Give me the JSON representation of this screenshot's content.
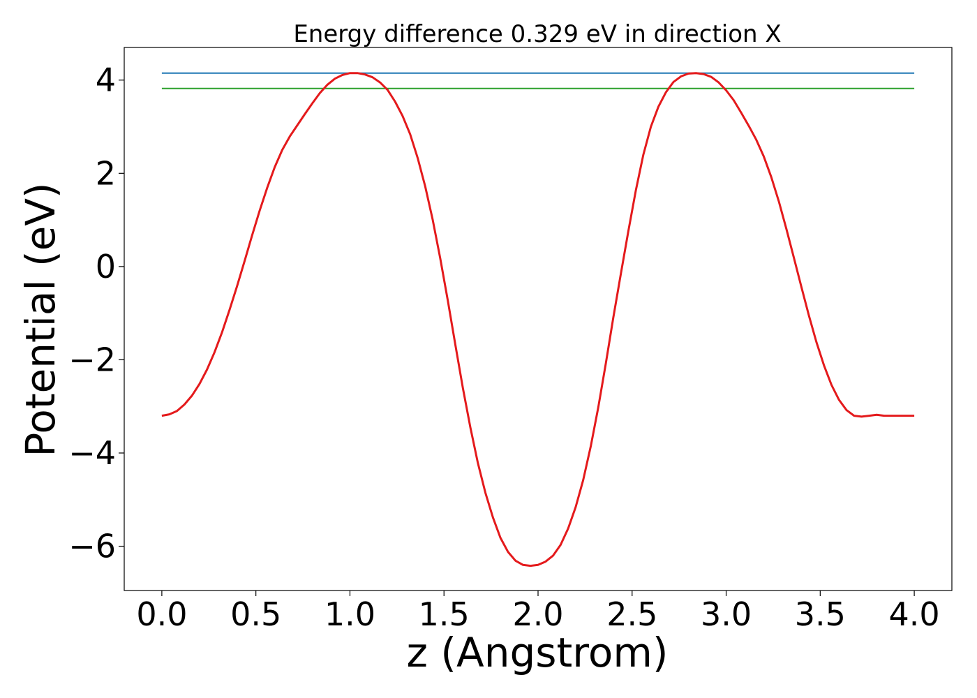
{
  "chart_data": {
    "type": "line",
    "title": "Energy difference 0.329 eV in direction X",
    "xlabel": "z (Angstrom)",
    "ylabel": "Potential (eV)",
    "xlim": [
      -0.2,
      4.2
    ],
    "ylim": [
      -6.95,
      4.7
    ],
    "xticks": [
      0.0,
      0.5,
      1.0,
      1.5,
      2.0,
      2.5,
      3.0,
      3.5,
      4.0
    ],
    "xtick_labels": [
      "0.0",
      "0.5",
      "1.0",
      "1.5",
      "2.0",
      "2.5",
      "3.0",
      "3.5",
      "4.0"
    ],
    "yticks": [
      -6,
      -4,
      -2,
      0,
      2,
      4
    ],
    "ytick_labels": [
      "−6",
      "−4",
      "−2",
      "0",
      "2",
      "4"
    ],
    "grid": false,
    "series": [
      {
        "color": "#1f77b4",
        "x": [
          0.0,
          4.0
        ],
        "y": [
          4.15,
          4.15
        ]
      },
      {
        "color": "#2ca02c",
        "x": [
          0.0,
          4.0
        ],
        "y": [
          3.82,
          3.82
        ]
      },
      {
        "color": "#e41a1c",
        "x": [
          0.0,
          0.04,
          0.08,
          0.12,
          0.16,
          0.2,
          0.24,
          0.28,
          0.32,
          0.36,
          0.4,
          0.44,
          0.48,
          0.52,
          0.56,
          0.6,
          0.64,
          0.68,
          0.72,
          0.76,
          0.8,
          0.84,
          0.88,
          0.92,
          0.96,
          1.0,
          1.04,
          1.08,
          1.12,
          1.16,
          1.2,
          1.24,
          1.28,
          1.32,
          1.36,
          1.4,
          1.44,
          1.48,
          1.52,
          1.56,
          1.6,
          1.64,
          1.68,
          1.72,
          1.76,
          1.8,
          1.84,
          1.88,
          1.92,
          1.96,
          2.0,
          2.04,
          2.08,
          2.12,
          2.16,
          2.2,
          2.24,
          2.28,
          2.32,
          2.36,
          2.4,
          2.44,
          2.48,
          2.52,
          2.56,
          2.6,
          2.64,
          2.68,
          2.72,
          2.76,
          2.8,
          2.84,
          2.88,
          2.92,
          2.96,
          3.0,
          3.04,
          3.08,
          3.12,
          3.16,
          3.2,
          3.24,
          3.28,
          3.32,
          3.36,
          3.4,
          3.44,
          3.48,
          3.52,
          3.56,
          3.6,
          3.64,
          3.68,
          3.72,
          3.76,
          3.8,
          3.84,
          3.88,
          3.92,
          3.96,
          4.0
        ],
        "y": [
          -3.2,
          -3.17,
          -3.1,
          -2.96,
          -2.77,
          -2.52,
          -2.21,
          -1.84,
          -1.41,
          -0.93,
          -0.42,
          0.12,
          0.67,
          1.2,
          1.69,
          2.13,
          2.5,
          2.79,
          3.03,
          3.27,
          3.5,
          3.72,
          3.9,
          4.03,
          4.11,
          4.15,
          4.15,
          4.12,
          4.06,
          3.95,
          3.79,
          3.54,
          3.23,
          2.84,
          2.33,
          1.72,
          1.0,
          0.18,
          -0.72,
          -1.67,
          -2.6,
          -3.45,
          -4.21,
          -4.85,
          -5.38,
          -5.82,
          -6.12,
          -6.31,
          -6.4,
          -6.42,
          -6.4,
          -6.33,
          -6.2,
          -5.97,
          -5.62,
          -5.16,
          -4.58,
          -3.86,
          -3.02,
          -2.09,
          -1.1,
          -0.16,
          0.76,
          1.64,
          2.4,
          3.0,
          3.43,
          3.74,
          3.96,
          4.08,
          4.14,
          4.15,
          4.13,
          4.07,
          3.95,
          3.78,
          3.57,
          3.3,
          3.02,
          2.72,
          2.36,
          1.92,
          1.4,
          0.81,
          0.19,
          -0.44,
          -1.05,
          -1.62,
          -2.12,
          -2.54,
          -2.86,
          -3.08,
          -3.2,
          -3.22,
          -3.2,
          -3.18,
          -3.2,
          -3.2,
          -3.2,
          -3.2,
          -3.2
        ]
      }
    ]
  }
}
